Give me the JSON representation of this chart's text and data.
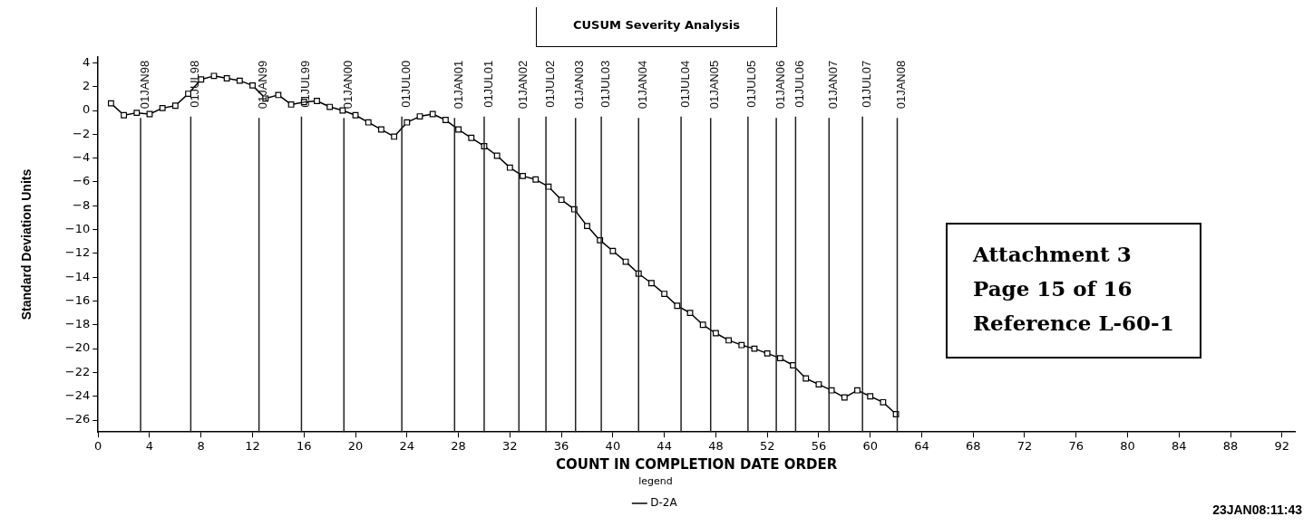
{
  "chart_data": {
    "type": "line",
    "title": "CUSUM Severity Analysis",
    "xlabel": "COUNT IN COMPLETION DATE ORDER",
    "ylabel": "Standard Deviation Units",
    "legend_title": "legend",
    "legend": "bottom",
    "marker": "square",
    "line_style": "solid",
    "grid": false,
    "xlim": [
      0,
      93
    ],
    "xticks": [
      0,
      4,
      8,
      12,
      16,
      20,
      24,
      28,
      32,
      36,
      40,
      44,
      48,
      52,
      56,
      60,
      64,
      68,
      72,
      76,
      80,
      84,
      88,
      92
    ],
    "ylim": [
      -27,
      4.5
    ],
    "yticks": [
      4,
      2,
      0,
      -2,
      -4,
      -6,
      -8,
      -10,
      -12,
      -14,
      -16,
      -18,
      -20,
      -22,
      -24,
      -26
    ],
    "x": [
      1,
      2,
      3,
      4,
      5,
      6,
      7,
      8,
      9,
      10,
      11,
      12,
      13,
      14,
      15,
      16,
      17,
      18,
      19,
      20,
      21,
      22,
      23,
      24,
      25,
      26,
      27,
      28,
      29,
      30,
      31,
      32,
      33,
      34,
      35,
      36,
      37,
      38,
      39,
      40,
      41,
      42,
      43,
      44,
      45,
      46,
      47,
      48,
      49,
      50,
      51,
      52,
      53,
      54,
      55,
      56,
      57,
      58,
      59,
      60,
      61,
      62
    ],
    "series": [
      {
        "name": "D-2A",
        "color": "#000000",
        "values": [
          0.6,
          -0.4,
          -0.2,
          -0.3,
          0.2,
          0.4,
          1.4,
          2.6,
          2.9,
          2.7,
          2.5,
          2.1,
          1.0,
          1.3,
          0.5,
          0.7,
          0.8,
          0.3,
          0,
          -0.4,
          -1.0,
          -1.6,
          -2.2,
          -1.0,
          -0.5,
          -0.3,
          -0.8,
          -1.6,
          -2.3,
          -3.0,
          -3.8,
          -4.8,
          -5.5,
          -5.8,
          -6.4,
          -7.5,
          -8.3,
          -9.7,
          -10.9,
          -11.8,
          -12.7,
          -13.7,
          -14.5,
          -15.4,
          -16.4,
          -17.0,
          -18.0,
          -18.7,
          -19.3,
          -19.7,
          -20.0,
          -20.4,
          -20.8,
          -21.4,
          -22.5,
          -23.0,
          -23.5,
          -24.1,
          -23.5,
          -24.0,
          -24.5,
          -25.5
        ]
      }
    ],
    "ref_lines": [
      {
        "axis": "x",
        "value": 3.3,
        "label": "01JAN98"
      },
      {
        "axis": "x",
        "value": 7.2,
        "label": "01JUL98"
      },
      {
        "axis": "x",
        "value": 12.5,
        "label": "01JAN99"
      },
      {
        "axis": "x",
        "value": 15.8,
        "label": "01JUL99"
      },
      {
        "axis": "x",
        "value": 19.1,
        "label": "01JAN00"
      },
      {
        "axis": "x",
        "value": 23.6,
        "label": "01JUL00"
      },
      {
        "axis": "x",
        "value": 27.7,
        "label": "01JAN01"
      },
      {
        "axis": "x",
        "value": 30.0,
        "label": "01JUL01"
      },
      {
        "axis": "x",
        "value": 32.7,
        "label": "01JAN02"
      },
      {
        "axis": "x",
        "value": 34.8,
        "label": "01JUL02"
      },
      {
        "axis": "x",
        "value": 37.1,
        "label": "01JAN03"
      },
      {
        "axis": "x",
        "value": 39.1,
        "label": "01JUL03"
      },
      {
        "axis": "x",
        "value": 42.0,
        "label": "01JAN04"
      },
      {
        "axis": "x",
        "value": 45.3,
        "label": "01JUL04"
      },
      {
        "axis": "x",
        "value": 47.6,
        "label": "01JAN05"
      },
      {
        "axis": "x",
        "value": 50.5,
        "label": "01JUL05"
      },
      {
        "axis": "x",
        "value": 52.7,
        "label": "01JAN06"
      },
      {
        "axis": "x",
        "value": 54.2,
        "label": "01JUL06"
      },
      {
        "axis": "x",
        "value": 56.8,
        "label": "01JAN07"
      },
      {
        "axis": "x",
        "value": 59.4,
        "label": "01JUL07"
      },
      {
        "axis": "x",
        "value": 62.1,
        "label": "01JAN08"
      }
    ],
    "annotations": [
      "Attachment 3",
      "Page 15 of 16",
      "Reference L-60-1",
      "23JAN08:11:43"
    ]
  }
}
